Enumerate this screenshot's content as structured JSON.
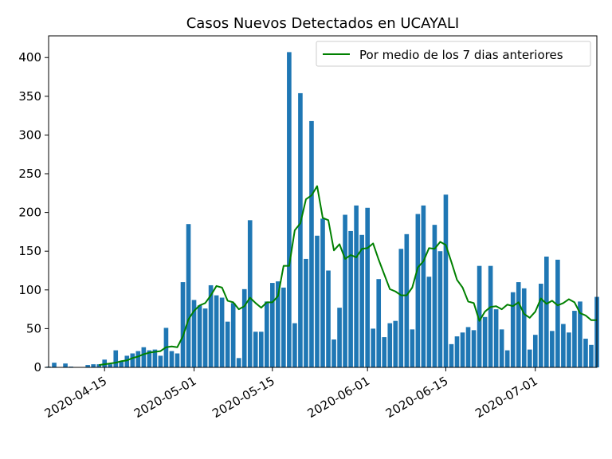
{
  "chart_data": {
    "type": "bar",
    "title": "Casos Nuevos Detectados en UCAYALI",
    "xlabel": "",
    "ylabel": "",
    "ylim": [
      0,
      428
    ],
    "y_ticks": [
      0,
      50,
      100,
      150,
      200,
      250,
      300,
      350,
      400
    ],
    "x_tick_labels": [
      "2020-04-15",
      "2020-05-01",
      "2020-05-15",
      "2020-06-01",
      "2020-06-15",
      "2020-07-01"
    ],
    "x_ticks": [
      "2020-04-15",
      "2020-05-01",
      "2020-05-15",
      "2020-06-01",
      "2020-06-15",
      "2020-07-01"
    ],
    "x_range": [
      "2020-04-05",
      "2020-07-12"
    ],
    "legend": {
      "position": "top-right",
      "entries": [
        "Por medio de los 7 dias anteriores"
      ]
    },
    "colors": {
      "bars": "#1f77b4",
      "line": "#008000"
    },
    "start_date": "2020-04-05",
    "series": [
      {
        "name": "Casos",
        "kind": "bar",
        "values": [
          1,
          6,
          0,
          5,
          1,
          0,
          0,
          3,
          4,
          4,
          10,
          4,
          22,
          8,
          15,
          18,
          21,
          26,
          22,
          23,
          15,
          51,
          21,
          18,
          110,
          185,
          87,
          80,
          76,
          106,
          93,
          90,
          59,
          83,
          12,
          101,
          190,
          46,
          46,
          85,
          109,
          111,
          103,
          407,
          57,
          354,
          140,
          318,
          170,
          192,
          125,
          36,
          77,
          197,
          176,
          209,
          171,
          206,
          50,
          114,
          39,
          57,
          60,
          153,
          172,
          49,
          198,
          209,
          117,
          184,
          150,
          223,
          30,
          40,
          45,
          52,
          48,
          131,
          65,
          131,
          75,
          49,
          22,
          97,
          110,
          102,
          23,
          42,
          108,
          143,
          47,
          139,
          56,
          45,
          73,
          85,
          37,
          29,
          91
        ]
      },
      {
        "name": "Por medio de los 7 dias anteriores",
        "kind": "line",
        "x": [
          "2020-04-14",
          "2020-04-15",
          "2020-04-16",
          "2020-04-17",
          "2020-04-18",
          "2020-04-19",
          "2020-04-20",
          "2020-04-21",
          "2020-04-22",
          "2020-04-23",
          "2020-04-24",
          "2020-04-25",
          "2020-04-26",
          "2020-04-27",
          "2020-04-28",
          "2020-04-29",
          "2020-04-30",
          "2020-05-01",
          "2020-05-02",
          "2020-05-03",
          "2020-05-04",
          "2020-05-05",
          "2020-05-06",
          "2020-05-07",
          "2020-05-08",
          "2020-05-09",
          "2020-05-10",
          "2020-05-11",
          "2020-05-12",
          "2020-05-13",
          "2020-05-14",
          "2020-05-15",
          "2020-05-16",
          "2020-05-17",
          "2020-05-18",
          "2020-05-19",
          "2020-05-20",
          "2020-05-21",
          "2020-05-22",
          "2020-05-23",
          "2020-05-24",
          "2020-05-25",
          "2020-05-26",
          "2020-05-27",
          "2020-05-28",
          "2020-05-29",
          "2020-05-30",
          "2020-05-31",
          "2020-06-01",
          "2020-06-02",
          "2020-06-03",
          "2020-06-04",
          "2020-06-05",
          "2020-06-06",
          "2020-06-07",
          "2020-06-08",
          "2020-06-09",
          "2020-06-10",
          "2020-06-11",
          "2020-06-12",
          "2020-06-13",
          "2020-06-14",
          "2020-06-15",
          "2020-06-16",
          "2020-06-17",
          "2020-06-18",
          "2020-06-19",
          "2020-06-20",
          "2020-06-21",
          "2020-06-22",
          "2020-06-23",
          "2020-06-24",
          "2020-06-25",
          "2020-06-26",
          "2020-06-27",
          "2020-06-28",
          "2020-06-29",
          "2020-06-30",
          "2020-07-01",
          "2020-07-02",
          "2020-07-03",
          "2020-07-04",
          "2020-07-05",
          "2020-07-06",
          "2020-07-07",
          "2020-07-08",
          "2020-07-09",
          "2020-07-10",
          "2020-07-11",
          "2020-07-12"
        ],
        "values": [
          3,
          4,
          5,
          6,
          8,
          9,
          12,
          14,
          17,
          19,
          20,
          21,
          26,
          27,
          26,
          40,
          62,
          73,
          80,
          83,
          93,
          105,
          103,
          86,
          84,
          75,
          79,
          90,
          83,
          77,
          84,
          84,
          92,
          131,
          131,
          177,
          186,
          217,
          222,
          234,
          193,
          190,
          151,
          159,
          140,
          145,
          142,
          153,
          154,
          160,
          139,
          120,
          101,
          98,
          93,
          93,
          103,
          129,
          137,
          154,
          153,
          162,
          158,
          136,
          113,
          103,
          85,
          83,
          60,
          72,
          78,
          79,
          75,
          81,
          79,
          84,
          69,
          64,
          72,
          89,
          82,
          86,
          80,
          83,
          88,
          84,
          70,
          67,
          61,
          61
        ]
      }
    ]
  }
}
